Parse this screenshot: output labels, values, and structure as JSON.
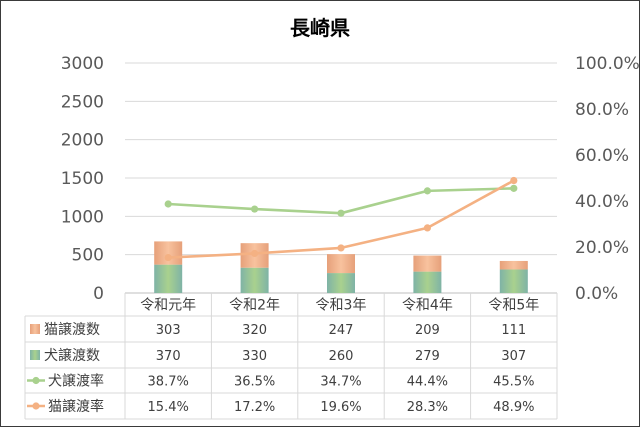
{
  "chart_data": {
    "type": "bar",
    "title": "長崎県",
    "categories": [
      "令和元年",
      "令和2年",
      "令和3年",
      "令和4年",
      "令和5年"
    ],
    "y_axis": {
      "min": 0,
      "max": 3000,
      "ticks": [
        "0",
        "500",
        "1000",
        "1500",
        "2000",
        "2500",
        "3000"
      ]
    },
    "y2_axis": {
      "min": 0,
      "max": 100,
      "ticks": [
        "0.0%",
        "20.0%",
        "40.0%",
        "60.0%",
        "80.0%",
        "100.0%"
      ]
    },
    "grid": true,
    "legend": "data-table",
    "series": [
      {
        "name": "猫譲渡数",
        "type": "bar",
        "axis": "left",
        "stack_level": 1,
        "values": [
          303,
          320,
          247,
          209,
          111
        ],
        "color": "#E6A07A",
        "color_light": "#F8C29E"
      },
      {
        "name": "犬譲渡数",
        "type": "bar",
        "axis": "left",
        "stack_level": 0,
        "values": [
          370,
          330,
          260,
          279,
          307
        ],
        "color": "#7FB3A6",
        "color_light": "#A9D18E"
      },
      {
        "name": "犬譲渡率",
        "type": "line",
        "axis": "right",
        "value_suffix": "%",
        "values": [
          38.7,
          36.5,
          34.7,
          44.4,
          45.5
        ],
        "color": "#A9D18E"
      },
      {
        "name": "猫譲渡率",
        "type": "line",
        "axis": "right",
        "value_suffix": "%",
        "values": [
          15.4,
          17.2,
          19.6,
          28.3,
          48.9
        ],
        "color": "#F4B183"
      }
    ]
  }
}
